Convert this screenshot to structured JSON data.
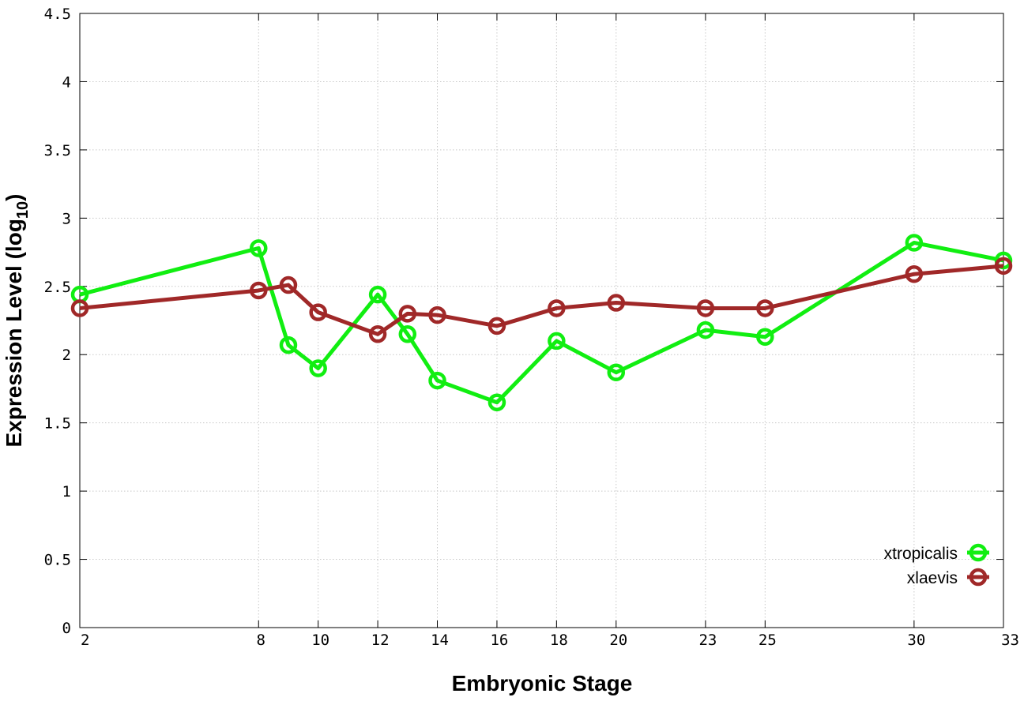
{
  "chart_data": {
    "type": "line",
    "xlabel": "Embryonic Stage",
    "ylabel": {
      "main": "Expression Level (log",
      "sub": "10",
      "close": ")"
    },
    "x_ticks": [
      "2",
      "8",
      "10",
      "12",
      "14",
      "16",
      "18",
      "20",
      "23",
      "25",
      "30",
      "33"
    ],
    "y_ticks": [
      "0",
      "0.5",
      "1",
      "1.5",
      "2",
      "2.5",
      "3",
      "3.5",
      "4",
      "4.5"
    ],
    "xlim": [
      2,
      33
    ],
    "ylim": [
      0,
      4.5
    ],
    "grid": true,
    "legend_position": "bottom-right",
    "series": [
      {
        "name": "xtropicalis",
        "color": "#11ee11",
        "points": [
          {
            "x": 2,
            "y": 2.44
          },
          {
            "x": 8,
            "y": 2.78
          },
          {
            "x": 9,
            "y": 2.07
          },
          {
            "x": 10,
            "y": 1.9
          },
          {
            "x": 12,
            "y": 2.44
          },
          {
            "x": 13,
            "y": 2.15
          },
          {
            "x": 14,
            "y": 1.81
          },
          {
            "x": 16,
            "y": 1.65
          },
          {
            "x": 18,
            "y": 2.1
          },
          {
            "x": 20,
            "y": 1.87
          },
          {
            "x": 23,
            "y": 2.18
          },
          {
            "x": 25,
            "y": 2.13
          },
          {
            "x": 30,
            "y": 2.82
          },
          {
            "x": 33,
            "y": 2.69
          }
        ]
      },
      {
        "name": "xlaevis",
        "color": "#a02828",
        "points": [
          {
            "x": 2,
            "y": 2.34
          },
          {
            "x": 8,
            "y": 2.47
          },
          {
            "x": 9,
            "y": 2.51
          },
          {
            "x": 10,
            "y": 2.31
          },
          {
            "x": 12,
            "y": 2.15
          },
          {
            "x": 13,
            "y": 2.3
          },
          {
            "x": 14,
            "y": 2.29
          },
          {
            "x": 16,
            "y": 2.21
          },
          {
            "x": 18,
            "y": 2.34
          },
          {
            "x": 20,
            "y": 2.38
          },
          {
            "x": 23,
            "y": 2.34
          },
          {
            "x": 25,
            "y": 2.34
          },
          {
            "x": 30,
            "y": 2.59
          },
          {
            "x": 33,
            "y": 2.65
          }
        ]
      }
    ]
  }
}
